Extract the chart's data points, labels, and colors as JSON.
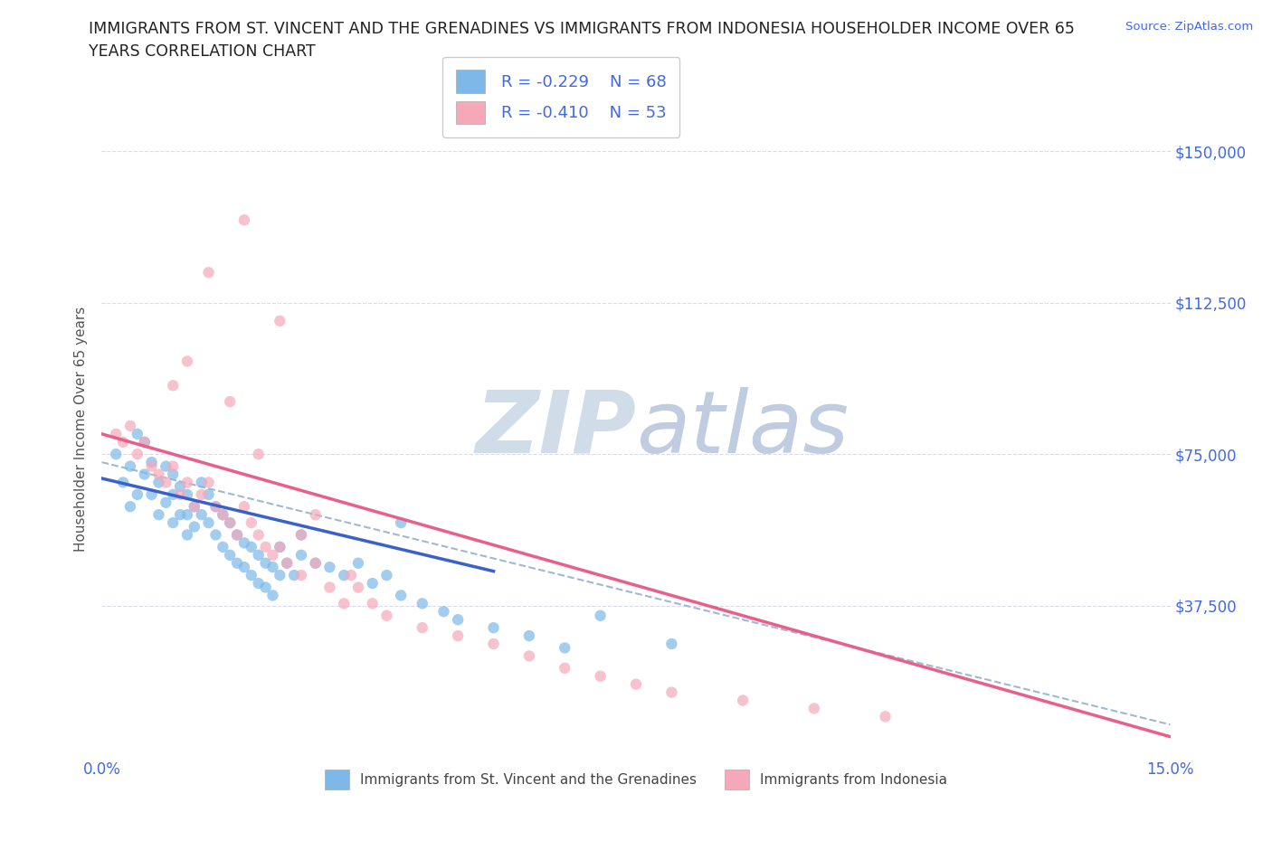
{
  "title_line1": "IMMIGRANTS FROM ST. VINCENT AND THE GRENADINES VS IMMIGRANTS FROM INDONESIA HOUSEHOLDER INCOME OVER 65",
  "title_line2": "YEARS CORRELATION CHART",
  "source_text": "Source: ZipAtlas.com",
  "ylabel": "Householder Income Over 65 years",
  "xlim": [
    0.0,
    0.15
  ],
  "ylim": [
    0,
    162500
  ],
  "xticks": [
    0.0,
    0.025,
    0.05,
    0.075,
    0.1,
    0.125,
    0.15
  ],
  "xticklabels": [
    "0.0%",
    "",
    "",
    "",
    "",
    "",
    "15.0%"
  ],
  "yticks": [
    0,
    37500,
    75000,
    112500,
    150000
  ],
  "yticklabels": [
    "",
    "$37,500",
    "$75,000",
    "$112,500",
    "$150,000"
  ],
  "blue_color": "#7db8e8",
  "pink_color": "#f4a8b8",
  "blue_line_color": "#3a60c9",
  "pink_line_color": "#e8608a",
  "dash_line_color": "#a0b8d0",
  "watermark_zip_color": "#d0dce8",
  "watermark_atlas_color": "#c0cce0",
  "tick_color": "#4169e1",
  "grid_color": "#d8dce8",
  "legend_r1": "R = -0.229",
  "legend_n1": "N = 68",
  "legend_r2": "R = -0.410",
  "legend_n2": "N = 53",
  "legend_label1": "Immigrants from St. Vincent and the Grenadines",
  "legend_label2": "Immigrants from Indonesia",
  "blue_scatter_x": [
    0.002,
    0.003,
    0.004,
    0.004,
    0.005,
    0.005,
    0.006,
    0.006,
    0.007,
    0.007,
    0.008,
    0.008,
    0.009,
    0.009,
    0.01,
    0.01,
    0.01,
    0.011,
    0.011,
    0.012,
    0.012,
    0.012,
    0.013,
    0.013,
    0.014,
    0.014,
    0.015,
    0.015,
    0.016,
    0.016,
    0.017,
    0.017,
    0.018,
    0.018,
    0.019,
    0.019,
    0.02,
    0.02,
    0.021,
    0.021,
    0.022,
    0.022,
    0.023,
    0.023,
    0.024,
    0.024,
    0.025,
    0.025,
    0.026,
    0.027,
    0.028,
    0.03,
    0.032,
    0.034,
    0.036,
    0.038,
    0.04,
    0.042,
    0.045,
    0.048,
    0.05,
    0.055,
    0.06,
    0.065,
    0.07,
    0.08,
    0.042,
    0.028
  ],
  "blue_scatter_y": [
    75000,
    68000,
    72000,
    62000,
    80000,
    65000,
    78000,
    70000,
    73000,
    65000,
    68000,
    60000,
    72000,
    63000,
    70000,
    65000,
    58000,
    67000,
    60000,
    65000,
    60000,
    55000,
    62000,
    57000,
    68000,
    60000,
    65000,
    58000,
    62000,
    55000,
    60000,
    52000,
    58000,
    50000,
    55000,
    48000,
    53000,
    47000,
    52000,
    45000,
    50000,
    43000,
    48000,
    42000,
    47000,
    40000,
    52000,
    45000,
    48000,
    45000,
    50000,
    48000,
    47000,
    45000,
    48000,
    43000,
    45000,
    40000,
    38000,
    36000,
    34000,
    32000,
    30000,
    27000,
    35000,
    28000,
    58000,
    55000
  ],
  "pink_scatter_x": [
    0.002,
    0.003,
    0.004,
    0.005,
    0.006,
    0.007,
    0.008,
    0.009,
    0.01,
    0.011,
    0.012,
    0.013,
    0.014,
    0.015,
    0.016,
    0.017,
    0.018,
    0.019,
    0.02,
    0.021,
    0.022,
    0.023,
    0.024,
    0.025,
    0.026,
    0.028,
    0.03,
    0.032,
    0.034,
    0.036,
    0.038,
    0.04,
    0.045,
    0.05,
    0.055,
    0.06,
    0.065,
    0.07,
    0.075,
    0.08,
    0.09,
    0.1,
    0.11,
    0.015,
    0.02,
    0.025,
    0.012,
    0.018,
    0.01,
    0.03,
    0.022,
    0.028,
    0.035
  ],
  "pink_scatter_y": [
    80000,
    78000,
    82000,
    75000,
    78000,
    72000,
    70000,
    68000,
    72000,
    65000,
    68000,
    62000,
    65000,
    68000,
    62000,
    60000,
    58000,
    55000,
    62000,
    58000,
    55000,
    52000,
    50000,
    52000,
    48000,
    45000,
    48000,
    42000,
    38000,
    42000,
    38000,
    35000,
    32000,
    30000,
    28000,
    25000,
    22000,
    20000,
    18000,
    16000,
    14000,
    12000,
    10000,
    120000,
    133000,
    108000,
    98000,
    88000,
    92000,
    60000,
    75000,
    55000,
    45000
  ],
  "blue_trend_x": [
    0.0,
    0.055
  ],
  "blue_trend_y": [
    69000,
    46000
  ],
  "pink_trend_x": [
    0.0,
    0.15
  ],
  "pink_trend_y": [
    80000,
    5000
  ],
  "dash_trend_x": [
    0.0,
    0.15
  ],
  "dash_trend_y": [
    73000,
    8000
  ]
}
